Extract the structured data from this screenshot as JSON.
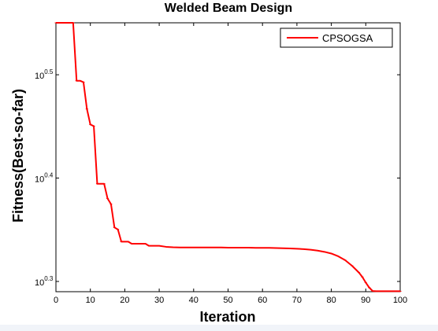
{
  "chart_data": {
    "type": "line",
    "title": "Welded Beam Design",
    "xlabel": "Iteration",
    "ylabel": "Fitness(Best-so-far)",
    "yscale": "log",
    "xlim": [
      0,
      100
    ],
    "ylim": [
      1.95,
      3.55
    ],
    "grid": false,
    "legend_position": "top-right",
    "x_ticks": [
      "0",
      "10",
      "20",
      "30",
      "40",
      "50",
      "60",
      "70",
      "80",
      "90",
      "100"
    ],
    "y_ticks": [
      {
        "base": "10",
        "exp": "0.3",
        "value": 1.995
      },
      {
        "base": "10",
        "exp": "0.4",
        "value": 2.512
      },
      {
        "base": "10",
        "exp": "0.5",
        "value": 3.162
      }
    ],
    "series": [
      {
        "name": "CPSOGSA",
        "color": "#ff0000",
        "x": [
          0,
          1,
          2,
          3,
          4,
          5,
          6,
          7,
          8,
          9,
          10,
          11,
          12,
          13,
          14,
          15,
          16,
          17,
          18,
          19,
          20,
          21,
          22,
          23,
          24,
          25,
          26,
          27,
          28,
          29,
          30,
          32,
          34,
          36,
          38,
          40,
          42,
          44,
          46,
          48,
          50,
          52,
          54,
          56,
          58,
          60,
          62,
          64,
          66,
          68,
          70,
          72,
          74,
          76,
          78,
          80,
          82,
          84,
          86,
          88,
          89,
          90,
          91,
          92,
          93,
          94,
          95,
          96,
          97,
          98,
          99,
          100
        ],
        "y": [
          3.55,
          3.55,
          3.55,
          3.55,
          3.55,
          3.55,
          3.12,
          3.12,
          3.11,
          2.93,
          2.83,
          2.82,
          2.48,
          2.48,
          2.48,
          2.4,
          2.37,
          2.25,
          2.24,
          2.18,
          2.18,
          2.18,
          2.17,
          2.17,
          2.17,
          2.17,
          2.17,
          2.16,
          2.16,
          2.16,
          2.16,
          2.155,
          2.153,
          2.152,
          2.152,
          2.152,
          2.152,
          2.152,
          2.152,
          2.152,
          2.151,
          2.151,
          2.151,
          2.151,
          2.15,
          2.15,
          2.15,
          2.149,
          2.148,
          2.147,
          2.146,
          2.144,
          2.141,
          2.137,
          2.131,
          2.123,
          2.11,
          2.092,
          2.066,
          2.035,
          2.015,
          1.99,
          1.968,
          1.953,
          1.952,
          1.952,
          1.952,
          1.952,
          1.952,
          1.952,
          1.952,
          1.952
        ]
      }
    ]
  }
}
